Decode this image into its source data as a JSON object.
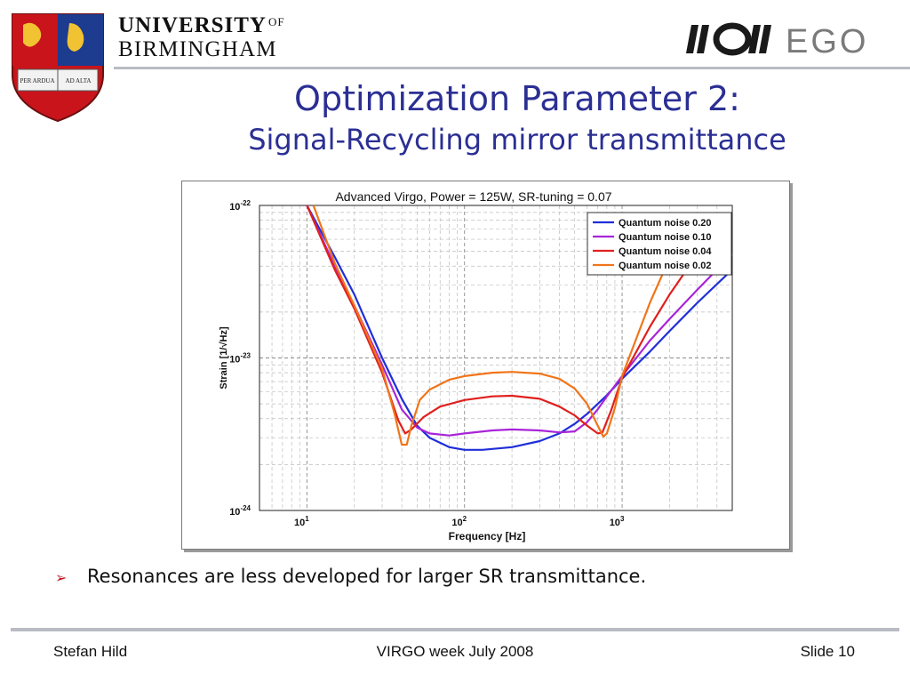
{
  "header": {
    "university_line1": "UNIVERSITY",
    "university_of": "OF",
    "university_line2": "BIRMINGHAM",
    "crest_book_left": "PER ARDUA",
    "crest_book_right": "AD ALTA",
    "ego_logo_text": "EGO"
  },
  "slide": {
    "title": "Optimization Parameter 2:",
    "subtitle": "Signal-Recycling mirror transmittance",
    "bullets": [
      "Resonances are less developed for larger SR transmittance."
    ]
  },
  "footer": {
    "left": "Stefan Hild",
    "center": "VIRGO week July 2008",
    "right": "Slide 10"
  },
  "colors": {
    "title": "#2b2f93",
    "bullet_arrow": "#c2171c"
  },
  "chart_data": {
    "type": "line",
    "title": "Advanced Virgo, Power = 125W, SR-tuning = 0.07",
    "xlabel": "Frequency [Hz]",
    "ylabel": "Strain [1/√Hz]",
    "xscale": "log",
    "yscale": "log",
    "xlim": [
      5,
      5000
    ],
    "ylim": [
      1e-24,
      1e-22
    ],
    "xticks": [
      {
        "value": 10,
        "label": "10",
        "exp": "1"
      },
      {
        "value": 100,
        "label": "10",
        "exp": "2"
      },
      {
        "value": 1000,
        "label": "10",
        "exp": "3"
      }
    ],
    "yticks": [
      {
        "value": 1e-22,
        "label": "10",
        "exp": "-22"
      },
      {
        "value": 1e-23,
        "label": "10",
        "exp": "-23"
      },
      {
        "value": 1e-24,
        "label": "10",
        "exp": "-24"
      }
    ],
    "grid": true,
    "legend_position": "top-right",
    "series": [
      {
        "name": "Quantum noise 0.20",
        "color": "#1f2fd8",
        "points": [
          [
            10,
            1e-22
          ],
          [
            15,
            4.6e-23
          ],
          [
            20,
            2.6e-23
          ],
          [
            30,
            1e-23
          ],
          [
            40,
            5.4e-24
          ],
          [
            50,
            3.6e-24
          ],
          [
            60,
            3e-24
          ],
          [
            80,
            2.6e-24
          ],
          [
            100,
            2.5e-24
          ],
          [
            130,
            2.5e-24
          ],
          [
            200,
            2.6e-24
          ],
          [
            300,
            2.85e-24
          ],
          [
            400,
            3.2e-24
          ],
          [
            500,
            3.7e-24
          ],
          [
            600,
            4.3e-24
          ],
          [
            800,
            5.7e-24
          ],
          [
            1000,
            7.3e-24
          ],
          [
            1500,
            1.1e-23
          ],
          [
            2000,
            1.5e-23
          ],
          [
            3000,
            2.3e-23
          ],
          [
            5000,
            3.8e-23
          ]
        ]
      },
      {
        "name": "Quantum noise 0.10",
        "color": "#a824d8",
        "points": [
          [
            10,
            1e-22
          ],
          [
            15,
            4e-23
          ],
          [
            20,
            2.2e-23
          ],
          [
            30,
            9e-24
          ],
          [
            40,
            4.6e-24
          ],
          [
            50,
            3.5e-24
          ],
          [
            60,
            3.2e-24
          ],
          [
            80,
            3.1e-24
          ],
          [
            100,
            3.2e-24
          ],
          [
            150,
            3.35e-24
          ],
          [
            200,
            3.4e-24
          ],
          [
            300,
            3.35e-24
          ],
          [
            400,
            3.25e-24
          ],
          [
            500,
            3.3e-24
          ],
          [
            600,
            3.8e-24
          ],
          [
            700,
            4.6e-24
          ],
          [
            800,
            5.6e-24
          ],
          [
            1000,
            7.6e-24
          ],
          [
            1500,
            1.3e-23
          ],
          [
            2000,
            1.8e-23
          ],
          [
            3000,
            2.8e-23
          ],
          [
            5000,
            4.8e-23
          ]
        ]
      },
      {
        "name": "Quantum noise 0.04",
        "color": "#e0201e",
        "points": [
          [
            10,
            1e-22
          ],
          [
            15,
            3.8e-23
          ],
          [
            20,
            2.1e-23
          ],
          [
            30,
            8e-24
          ],
          [
            38,
            3.9e-24
          ],
          [
            42,
            3.2e-24
          ],
          [
            46,
            3.4e-24
          ],
          [
            55,
            4.1e-24
          ],
          [
            70,
            4.8e-24
          ],
          [
            100,
            5.3e-24
          ],
          [
            150,
            5.6e-24
          ],
          [
            200,
            5.65e-24
          ],
          [
            300,
            5.4e-24
          ],
          [
            400,
            4.8e-24
          ],
          [
            500,
            4.2e-24
          ],
          [
            600,
            3.6e-24
          ],
          [
            700,
            3.2e-24
          ],
          [
            750,
            3.25e-24
          ],
          [
            850,
            4.5e-24
          ],
          [
            1000,
            7.4e-24
          ],
          [
            1500,
            1.6e-23
          ],
          [
            2000,
            2.6e-23
          ],
          [
            3000,
            4.8e-23
          ]
        ]
      },
      {
        "name": "Quantum noise 0.02",
        "color": "#f0751a",
        "points": [
          [
            11,
            1e-22
          ],
          [
            15,
            4.2e-23
          ],
          [
            20,
            2.2e-23
          ],
          [
            30,
            8.5e-24
          ],
          [
            36,
            4.3e-24
          ],
          [
            40,
            2.7e-24
          ],
          [
            43,
            2.7e-24
          ],
          [
            46,
            3.6e-24
          ],
          [
            52,
            5.3e-24
          ],
          [
            60,
            6.2e-24
          ],
          [
            80,
            7.2e-24
          ],
          [
            100,
            7.6e-24
          ],
          [
            150,
            8e-24
          ],
          [
            200,
            8.1e-24
          ],
          [
            300,
            7.9e-24
          ],
          [
            400,
            7.3e-24
          ],
          [
            500,
            6.3e-24
          ],
          [
            600,
            5e-24
          ],
          [
            700,
            3.6e-24
          ],
          [
            760,
            3.05e-24
          ],
          [
            800,
            3.2e-24
          ],
          [
            900,
            4.7e-24
          ],
          [
            1000,
            7.6e-24
          ],
          [
            1500,
            2.3e-23
          ],
          [
            2000,
            4.5e-23
          ],
          [
            2500,
            7.5e-23
          ]
        ]
      }
    ]
  }
}
